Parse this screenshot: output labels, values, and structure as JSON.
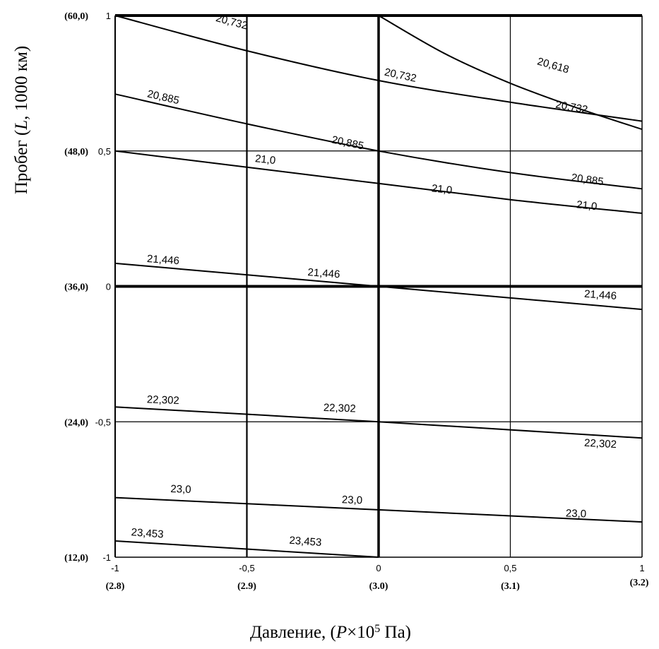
{
  "chart_data": {
    "type": "line",
    "title": "",
    "xlabel": {
      "prefix": "Давление, (",
      "var": "P",
      "times": "×10",
      "sup": "5",
      "unit": " Па)"
    },
    "ylabel": {
      "prefix": "Пробег (",
      "var": "L",
      "suffix": ", 1000 км)"
    },
    "xlim": [
      -1,
      1
    ],
    "ylim": [
      -1,
      1
    ],
    "grid": true,
    "x_ticks": [
      {
        "value": -1,
        "label": "-1",
        "natural": "(2.8)"
      },
      {
        "value": -0.5,
        "label": "-0,5",
        "natural": "(2.9)"
      },
      {
        "value": 0,
        "label": "0",
        "natural": "(3.0)"
      },
      {
        "value": 0.5,
        "label": "0,5",
        "natural": "(3.1)"
      },
      {
        "value": 1,
        "label": "1",
        "natural": "(3.2)"
      }
    ],
    "y_ticks": [
      {
        "value": 1,
        "label": "1",
        "natural": "(60,0)"
      },
      {
        "value": 0.5,
        "label": "0,5",
        "natural": "(48,0)"
      },
      {
        "value": 0,
        "label": "0",
        "natural": "(36,0)"
      },
      {
        "value": -0.5,
        "label": "-0,5",
        "natural": "(24,0)"
      },
      {
        "value": -1,
        "label": "-1",
        "natural": "(12,0)"
      }
    ],
    "series": [
      {
        "name": "20,618",
        "points": [
          [
            0,
            1
          ],
          [
            0.25,
            0.86
          ],
          [
            0.5,
            0.75
          ],
          [
            0.75,
            0.66
          ],
          [
            1,
            0.58
          ]
        ],
        "labels": [
          {
            "text": "20,618",
            "x": 0.6,
            "y": 0.82,
            "angle": 16
          }
        ]
      },
      {
        "name": "20,732",
        "points": [
          [
            -1,
            1
          ],
          [
            -0.5,
            0.87
          ],
          [
            0,
            0.76
          ],
          [
            0.5,
            0.68
          ],
          [
            1,
            0.61
          ]
        ],
        "labels": [
          {
            "text": "20,732",
            "x": -0.62,
            "y": 0.98,
            "angle": 15
          },
          {
            "text": "20,732",
            "x": 0.02,
            "y": 0.78,
            "angle": 12
          },
          {
            "text": "20,732",
            "x": 0.67,
            "y": 0.66,
            "angle": 10
          }
        ]
      },
      {
        "name": "20,885",
        "points": [
          [
            -1,
            0.71
          ],
          [
            -0.5,
            0.6
          ],
          [
            0,
            0.5
          ],
          [
            0.5,
            0.42
          ],
          [
            1,
            0.36
          ]
        ],
        "labels": [
          {
            "text": "20,885",
            "x": -0.88,
            "y": 0.7,
            "angle": 13
          },
          {
            "text": "20,885",
            "x": -0.18,
            "y": 0.53,
            "angle": 12
          },
          {
            "text": "20,885",
            "x": 0.73,
            "y": 0.39,
            "angle": 8
          }
        ]
      },
      {
        "name": "21,0",
        "points": [
          [
            -1,
            0.5
          ],
          [
            -0.5,
            0.44
          ],
          [
            0,
            0.38
          ],
          [
            0.5,
            0.32
          ],
          [
            1,
            0.27
          ]
        ],
        "labels": [
          {
            "text": "21,0",
            "x": -0.47,
            "y": 0.46,
            "angle": 6
          },
          {
            "text": "21,0",
            "x": 0.2,
            "y": 0.35,
            "angle": 6
          },
          {
            "text": "21,0",
            "x": 0.75,
            "y": 0.29,
            "angle": 6
          }
        ]
      },
      {
        "name": "21,446",
        "points": [
          [
            -1,
            0.085
          ],
          [
            0,
            0
          ],
          [
            1,
            -0.085
          ]
        ],
        "labels": [
          {
            "text": "21,446",
            "x": -0.88,
            "y": 0.09,
            "angle": 4
          },
          {
            "text": "21,446",
            "x": -0.27,
            "y": 0.04,
            "angle": 4
          },
          {
            "text": "21,446",
            "x": 0.78,
            "y": -0.04,
            "angle": 4
          }
        ]
      },
      {
        "name": "22,302",
        "points": [
          [
            -1,
            -0.445
          ],
          [
            0,
            -0.5
          ],
          [
            1,
            -0.56
          ]
        ],
        "labels": [
          {
            "text": "22,302",
            "x": -0.88,
            "y": -0.43,
            "angle": 2
          },
          {
            "text": "22,302",
            "x": -0.21,
            "y": -0.46,
            "angle": 2
          },
          {
            "text": "22,302",
            "x": 0.78,
            "y": -0.59,
            "angle": 3
          }
        ]
      },
      {
        "name": "23,0",
        "points": [
          [
            -1,
            -0.78
          ],
          [
            0,
            -0.825
          ],
          [
            1,
            -0.87
          ]
        ],
        "labels": [
          {
            "text": "23,0",
            "x": -0.79,
            "y": -0.76,
            "angle": 2
          },
          {
            "text": "23,0",
            "x": -0.14,
            "y": -0.8,
            "angle": 2
          },
          {
            "text": "23,0",
            "x": 0.71,
            "y": -0.85,
            "angle": 2
          }
        ]
      },
      {
        "name": "23,453",
        "points": [
          [
            -1,
            -0.94
          ],
          [
            0,
            -1.0
          ]
        ],
        "labels": [
          {
            "text": "23,453",
            "x": -0.94,
            "y": -0.92,
            "angle": 4
          },
          {
            "text": "23,453",
            "x": -0.34,
            "y": -0.95,
            "angle": 4
          }
        ]
      }
    ]
  }
}
